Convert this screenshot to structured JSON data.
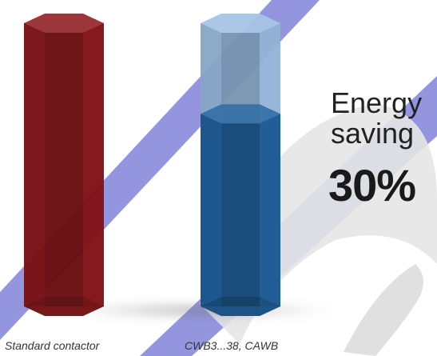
{
  "colors": {
    "standard_bar": "#8a1418",
    "efficient_bar_full": "#9bbde3",
    "efficient_bar_fill": "#1d5f9e",
    "watermark_blue": "#3a3fc4"
  },
  "headline": {
    "line1": "Energy",
    "line2": "saving",
    "value": "30%"
  },
  "chart_data": {
    "type": "bar",
    "categories": [
      "Standard contactor",
      "CWB3...38, CAWB"
    ],
    "values": [
      100,
      70
    ],
    "ylim": [
      0,
      100
    ],
    "energy_saving_percent": 30,
    "annotations": [
      "Energy",
      "saving",
      "30%"
    ]
  }
}
